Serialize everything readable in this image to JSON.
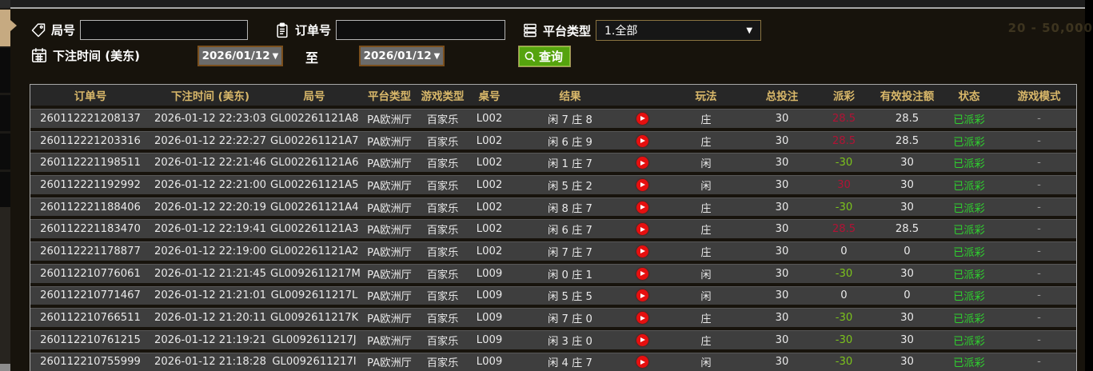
{
  "background_hint": "20 - 50,000",
  "filters": {
    "round_label": "局号",
    "round_value": "",
    "order_label": "订单号",
    "order_value": "",
    "platform_label": "平台类型",
    "platform_value": "1.全部",
    "bet_time_label": "下注时间 (美东)",
    "date_from": "2026/01/12",
    "to_label": "至",
    "date_to": "2026/01/12",
    "search_label": "查询"
  },
  "colors": {
    "payout_win_red": "#b11335",
    "payout_loss_green": "#7cc31c",
    "status_green": "#2fd12f",
    "header_gold": "#d9b86a",
    "search_button_green": "#55a30e"
  },
  "table": {
    "headers": [
      "订单号",
      "下注时间 (美东)",
      "局号",
      "平台类型",
      "游戏类型",
      "桌号",
      "结果",
      "",
      "玩法",
      "总投注",
      "派彩",
      "有效投注额",
      "状态",
      "游戏模式"
    ],
    "rows": [
      {
        "order_id": "260112221208137",
        "bet_time": "2026-01-12 22:23:03",
        "round_id": "GL002261121A8",
        "platform": "PA欧洲厅",
        "game_type": "百家乐",
        "table_no": "L002",
        "result": "闲 7 庄 8",
        "play": "庄",
        "total_bet": "30",
        "payout": "28.5",
        "valid_bet": "28.5",
        "status": "已派彩",
        "mode": "-"
      },
      {
        "order_id": "260112221203316",
        "bet_time": "2026-01-12 22:22:27",
        "round_id": "GL002261121A7",
        "platform": "PA欧洲厅",
        "game_type": "百家乐",
        "table_no": "L002",
        "result": "闲 6 庄 9",
        "play": "庄",
        "total_bet": "30",
        "payout": "28.5",
        "valid_bet": "28.5",
        "status": "已派彩",
        "mode": "-"
      },
      {
        "order_id": "260112221198511",
        "bet_time": "2026-01-12 22:21:46",
        "round_id": "GL002261121A6",
        "platform": "PA欧洲厅",
        "game_type": "百家乐",
        "table_no": "L002",
        "result": "闲 1 庄 7",
        "play": "闲",
        "total_bet": "30",
        "payout": "-30",
        "valid_bet": "30",
        "status": "已派彩",
        "mode": "-"
      },
      {
        "order_id": "260112221192992",
        "bet_time": "2026-01-12 22:21:00",
        "round_id": "GL002261121A5",
        "platform": "PA欧洲厅",
        "game_type": "百家乐",
        "table_no": "L002",
        "result": "闲 5 庄 2",
        "play": "闲",
        "total_bet": "30",
        "payout": "30",
        "valid_bet": "30",
        "status": "已派彩",
        "mode": "-"
      },
      {
        "order_id": "260112221188406",
        "bet_time": "2026-01-12 22:20:19",
        "round_id": "GL002261121A4",
        "platform": "PA欧洲厅",
        "game_type": "百家乐",
        "table_no": "L002",
        "result": "闲 8 庄 7",
        "play": "庄",
        "total_bet": "30",
        "payout": "-30",
        "valid_bet": "30",
        "status": "已派彩",
        "mode": "-"
      },
      {
        "order_id": "260112221183470",
        "bet_time": "2026-01-12 22:19:41",
        "round_id": "GL002261121A3",
        "platform": "PA欧洲厅",
        "game_type": "百家乐",
        "table_no": "L002",
        "result": "闲 6 庄 7",
        "play": "庄",
        "total_bet": "30",
        "payout": "28.5",
        "valid_bet": "28.5",
        "status": "已派彩",
        "mode": "-"
      },
      {
        "order_id": "260112221178877",
        "bet_time": "2026-01-12 22:19:00",
        "round_id": "GL002261121A2",
        "platform": "PA欧洲厅",
        "game_type": "百家乐",
        "table_no": "L002",
        "result": "闲 7 庄 7",
        "play": "庄",
        "total_bet": "30",
        "payout": "0",
        "valid_bet": "0",
        "status": "已派彩",
        "mode": "-"
      },
      {
        "order_id": "260112210776061",
        "bet_time": "2026-01-12 21:21:45",
        "round_id": "GL0092611217M",
        "platform": "PA欧洲厅",
        "game_type": "百家乐",
        "table_no": "L009",
        "result": "闲 0 庄 1",
        "play": "闲",
        "total_bet": "30",
        "payout": "-30",
        "valid_bet": "30",
        "status": "已派彩",
        "mode": "-"
      },
      {
        "order_id": "260112210771467",
        "bet_time": "2026-01-12 21:21:01",
        "round_id": "GL0092611217L",
        "platform": "PA欧洲厅",
        "game_type": "百家乐",
        "table_no": "L009",
        "result": "闲 5 庄 5",
        "play": "闲",
        "total_bet": "30",
        "payout": "0",
        "valid_bet": "0",
        "status": "已派彩",
        "mode": "-"
      },
      {
        "order_id": "260112210766511",
        "bet_time": "2026-01-12 21:20:11",
        "round_id": "GL0092611217K",
        "platform": "PA欧洲厅",
        "game_type": "百家乐",
        "table_no": "L009",
        "result": "闲 7 庄 0",
        "play": "庄",
        "total_bet": "30",
        "payout": "-30",
        "valid_bet": "30",
        "status": "已派彩",
        "mode": "-"
      },
      {
        "order_id": "260112210761215",
        "bet_time": "2026-01-12 21:19:21",
        "round_id": "GL0092611217J",
        "platform": "PA欧洲厅",
        "game_type": "百家乐",
        "table_no": "L009",
        "result": "闲 3 庄 0",
        "play": "庄",
        "total_bet": "30",
        "payout": "-30",
        "valid_bet": "30",
        "status": "已派彩",
        "mode": "-"
      },
      {
        "order_id": "260112210755999",
        "bet_time": "2026-01-12 21:18:28",
        "round_id": "GL0092611217I",
        "platform": "PA欧洲厅",
        "game_type": "百家乐",
        "table_no": "L009",
        "result": "闲 4 庄 7",
        "play": "闲",
        "total_bet": "30",
        "payout": "-30",
        "valid_bet": "30",
        "status": "已派彩",
        "mode": "-"
      }
    ]
  }
}
